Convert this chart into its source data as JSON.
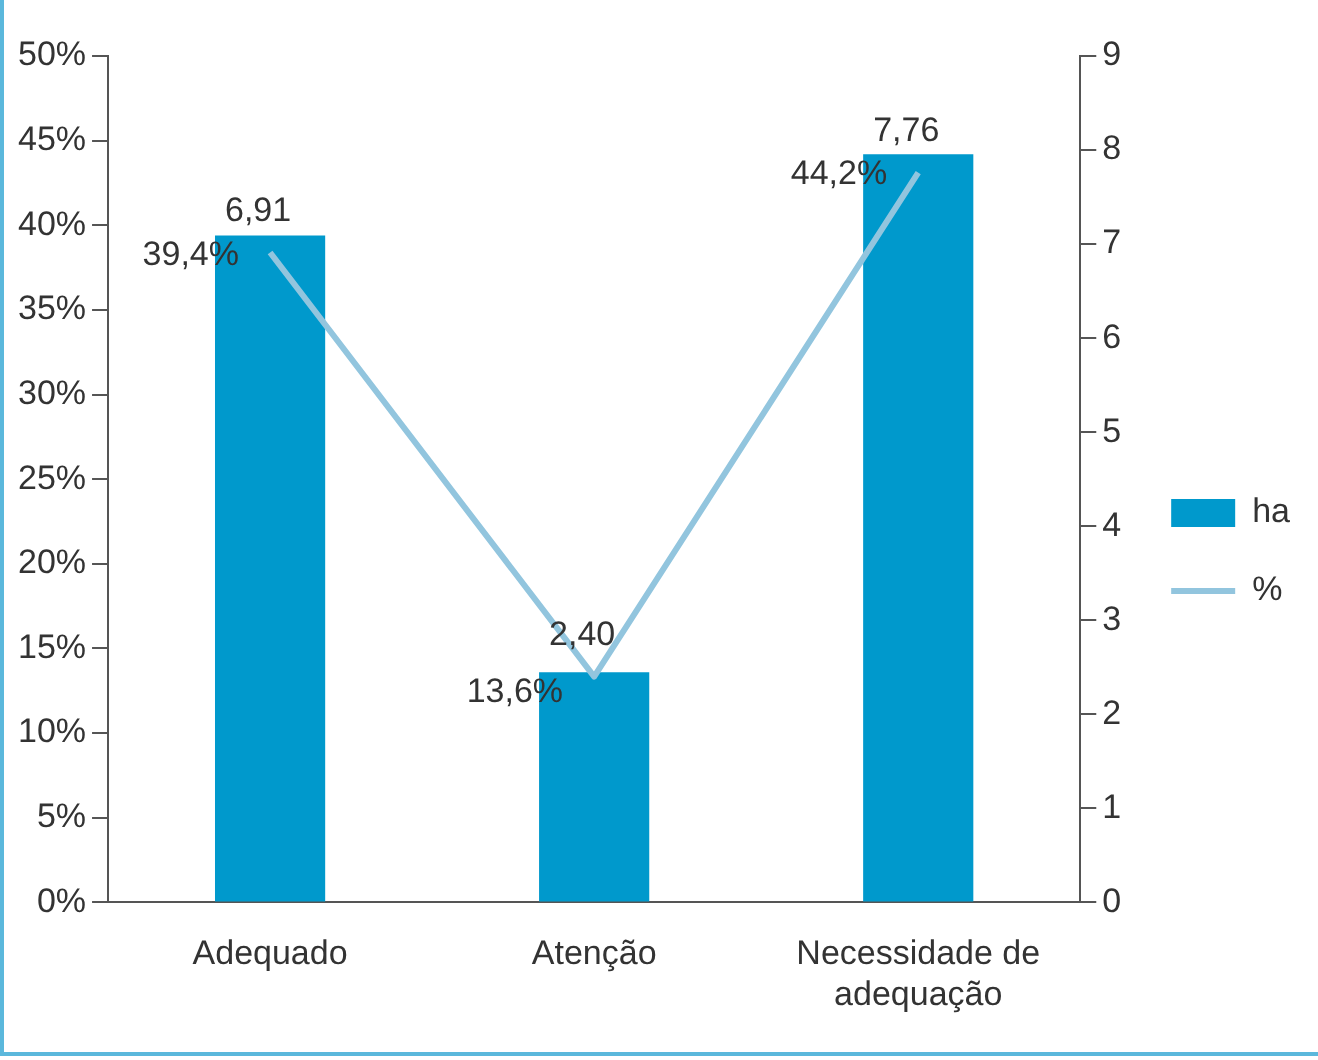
{
  "chart_data": {
    "type": "bar",
    "categories": [
      "Adequado",
      "Atenção",
      "Necessidade de adequação"
    ],
    "series": [
      {
        "name": "ha",
        "color": "#0099cc",
        "values": [
          39.4,
          13.6,
          44.2
        ],
        "value_labels": [
          "39,4%",
          "13,6%",
          "44,2%"
        ]
      },
      {
        "name": "%",
        "type": "line",
        "axis": "y2",
        "color": "#92c5de",
        "values": [
          6.91,
          2.4,
          7.76
        ],
        "value_labels": [
          "6,91",
          "2,40",
          "7,76"
        ]
      }
    ],
    "ylim": [
      0,
      50
    ],
    "yticks": [
      {
        "value": 0,
        "label": "0%"
      },
      {
        "value": 5,
        "label": "5%"
      },
      {
        "value": 10,
        "label": "10%"
      },
      {
        "value": 15,
        "label": "15%"
      },
      {
        "value": 20,
        "label": "20%"
      },
      {
        "value": 25,
        "label": "25%"
      },
      {
        "value": 30,
        "label": "30%"
      },
      {
        "value": 35,
        "label": "35%"
      },
      {
        "value": 40,
        "label": "40%"
      },
      {
        "value": 45,
        "label": "45%"
      },
      {
        "value": 50,
        "label": "50%"
      }
    ],
    "y2lim": [
      0,
      9
    ],
    "y2ticks": [
      0,
      1,
      2,
      3,
      4,
      5,
      6,
      7,
      8,
      9
    ],
    "grid": false,
    "legend": "right",
    "marker": "none"
  }
}
